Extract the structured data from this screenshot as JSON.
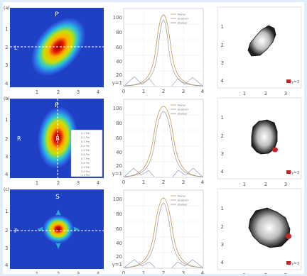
{
  "rows": [
    {
      "letter": "(a)",
      "heat": {
        "top_label": "P",
        "side_label": "L",
        "xticks": [
          "1",
          "2",
          "3",
          "4"
        ],
        "yticks": [
          "1",
          "2",
          "3",
          "4"
        ]
      },
      "profile": {
        "yticks": [
          "100",
          "80",
          "60",
          "40",
          "20"
        ],
        "xticks": [
          "0",
          "1",
          "2",
          "3",
          "4"
        ],
        "y_marker": "y=1",
        "legend": [
          "Planar",
          "Strained",
          "Stained"
        ]
      },
      "blob": {
        "xticks": [
          "1",
          "2",
          "3"
        ],
        "yticks": [
          "1",
          "2",
          "3",
          "4"
        ],
        "label": "y=1"
      }
    },
    {
      "letter": "(b)",
      "heat": {
        "top_label": "P",
        "side_label": "R",
        "center_label": "B",
        "xticks": [
          "1",
          "2",
          "3",
          "4"
        ],
        "yticks": [
          "1",
          "2",
          "3",
          "4"
        ],
        "colorbar_labels": [
          "0.1 Pm",
          "0.2 Pm",
          "0.3 Pm",
          "0.4 Pm",
          "0.5 Pm",
          "0.6 Pm",
          "0.7 Pm",
          "0.8 Pm",
          "0.9 Pm",
          "1.0 Pm",
          "1.1 Pm"
        ]
      },
      "profile": {
        "yticks": [
          "100",
          "80",
          "60",
          "40",
          "20"
        ],
        "xticks": [
          "0",
          "1",
          "2",
          "3",
          "4"
        ],
        "y_marker": "y=1",
        "legend": [
          "Planar",
          "Strained",
          "Stained"
        ]
      },
      "blob": {
        "xticks": [
          "1",
          "2",
          "3"
        ],
        "yticks": [
          "1",
          "2",
          "3",
          "4"
        ],
        "label": "y=1"
      }
    },
    {
      "letter": "(c)",
      "heat": {
        "top_label": "S",
        "side_label": "P",
        "xticks": [
          "1",
          "2",
          "3",
          "4"
        ],
        "yticks": [
          "1",
          "2",
          "3",
          "4"
        ]
      },
      "profile": {
        "yticks": [
          "100",
          "80",
          "60",
          "40",
          "20"
        ],
        "xticks": [
          "0",
          "1",
          "2",
          "3",
          "4"
        ],
        "y_marker": "y=1",
        "legend": [
          "Planar",
          "Strained",
          "Stained"
        ]
      },
      "blob": {
        "xticks": [
          "1",
          "2",
          "3"
        ],
        "yticks": [
          "1",
          "2",
          "3",
          "4"
        ],
        "label": "y=1"
      }
    }
  ],
  "colors": {
    "accent": "#cc2222",
    "heat_bg": "#1f3fc4"
  }
}
